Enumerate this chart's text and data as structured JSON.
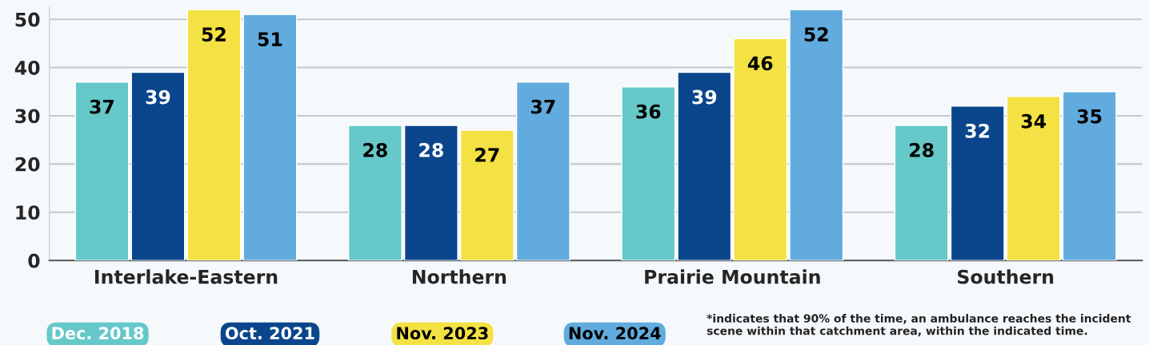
{
  "chart_data": {
    "type": "bar",
    "categories": [
      "Interlake-Eastern",
      "Northern",
      "Prairie Mountain",
      "Southern"
    ],
    "series": [
      {
        "name": "Dec. 2018",
        "color": "#66c8c9",
        "values": [
          37,
          28,
          36,
          28
        ]
      },
      {
        "name": "Oct. 2021",
        "color": "#0b468c",
        "values": [
          39,
          28,
          39,
          32
        ]
      },
      {
        "name": "Nov. 2023",
        "color": "#f4e143",
        "values": [
          52,
          27,
          46,
          34
        ]
      },
      {
        "name": "Nov. 2024",
        "color": "#61abde",
        "values": [
          51,
          37,
          52,
          35
        ]
      }
    ],
    "ylim": [
      0,
      52.5
    ],
    "yticks": [
      0,
      10,
      20,
      30,
      40,
      50
    ],
    "grid": "y",
    "legend": "bottom",
    "data_labels": true,
    "annotations": [
      "*indicates that 90% of the time, an ambulance reaches the incident scene within that catchment area, within the indicated time."
    ]
  }
}
